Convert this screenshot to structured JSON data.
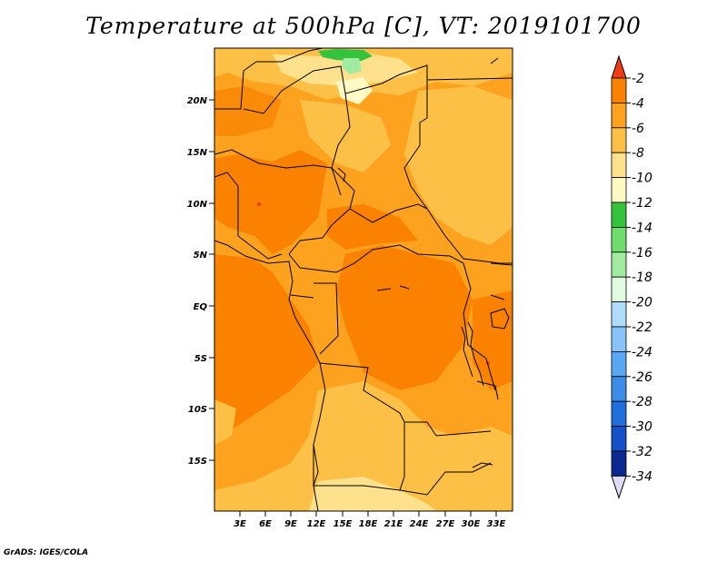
{
  "title": "Temperature at 500hPa [C], VT: 2019101700",
  "credit": "GrADS: IGES/COLA",
  "axes": {
    "y_ticks": [
      "20N",
      "15N",
      "10N",
      "5N",
      "EQ",
      "5S",
      "10S",
      "15S"
    ],
    "x_ticks": [
      "3E",
      "6E",
      "9E",
      "12E",
      "15E",
      "18E",
      "21E",
      "24E",
      "27E",
      "30E",
      "33E"
    ]
  },
  "colorbar": {
    "labels": [
      "-2",
      "-4",
      "-6",
      "-8",
      "-10",
      "-12",
      "-14",
      "-16",
      "-18",
      "-20",
      "-22",
      "-24",
      "-26",
      "-28",
      "-30",
      "-32",
      "-34"
    ],
    "colors": [
      "#f03c14",
      "#fa8200",
      "#fca21e",
      "#fcc046",
      "#fde18c",
      "#fffac4",
      "#33c33c",
      "#6edc6e",
      "#a0eba0",
      "#e0fbe0",
      "#b0dcfc",
      "#88c4f8",
      "#5aa8f4",
      "#3c8ce8",
      "#1e6edc",
      "#1450c8",
      "#0a2890",
      "#e0dcf8"
    ],
    "colors_note_only": "top triangle through bands to bottom triangle"
  },
  "fill_colors": {
    "dominant": "#fca21e",
    "warm": "#fa8200",
    "cooler": "#fcc046",
    "cool": "#fde18c",
    "green": "#33c33c",
    "light_green": "#a0eba0"
  }
}
